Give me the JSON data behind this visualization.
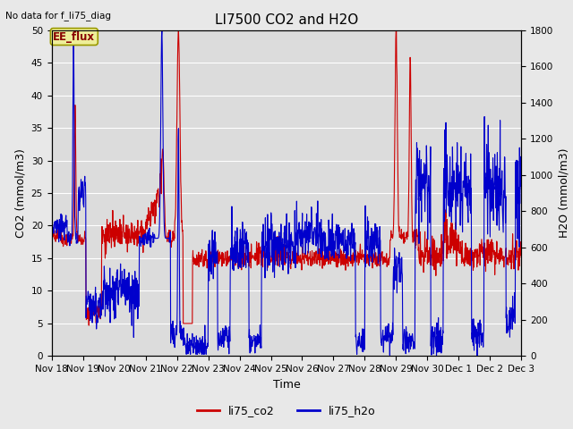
{
  "title": "LI7500 CO2 and H2O",
  "top_left_text": "No data for f_li75_diag",
  "xlabel": "Time",
  "ylabel_left": "CO2 (mmol/m3)",
  "ylabel_right": "H2O (mmol/m3)",
  "legend_label_co2": "li75_co2",
  "legend_label_h2o": "li75_h2o",
  "annotation_box": "EE_flux",
  "ylim_left": [
    0,
    50
  ],
  "ylim_right": [
    0,
    1800
  ],
  "yticks_left": [
    0,
    5,
    10,
    15,
    20,
    25,
    30,
    35,
    40,
    45,
    50
  ],
  "yticks_right": [
    0,
    200,
    400,
    600,
    800,
    1000,
    1200,
    1400,
    1600,
    1800
  ],
  "color_co2": "#cc0000",
  "color_h2o": "#0000cc",
  "color_annotation_bg": "#eeee99",
  "color_annotation_border": "#999900",
  "bg_color": "#e8e8e8",
  "plot_bg_color": "#dcdcdc",
  "grid_color": "#ffffff",
  "num_points": 1500,
  "x_start": 18,
  "x_end": 33,
  "x_ticks": [
    18,
    19,
    20,
    21,
    22,
    23,
    24,
    25,
    26,
    27,
    28,
    29,
    30,
    31,
    32,
    33
  ],
  "x_tick_labels": [
    "Nov 18",
    "Nov 19",
    "Nov 20",
    "Nov 21",
    "Nov 22",
    "Nov 23",
    "Nov 24",
    "Nov 25",
    "Nov 26",
    "Nov 27",
    "Nov 28",
    "Nov 29",
    "Nov 30",
    "Dec 1",
    "Dec 2",
    "Dec 3"
  ],
  "title_fontsize": 11,
  "axis_fontsize": 9,
  "tick_fontsize": 7.5,
  "legend_fontsize": 9
}
